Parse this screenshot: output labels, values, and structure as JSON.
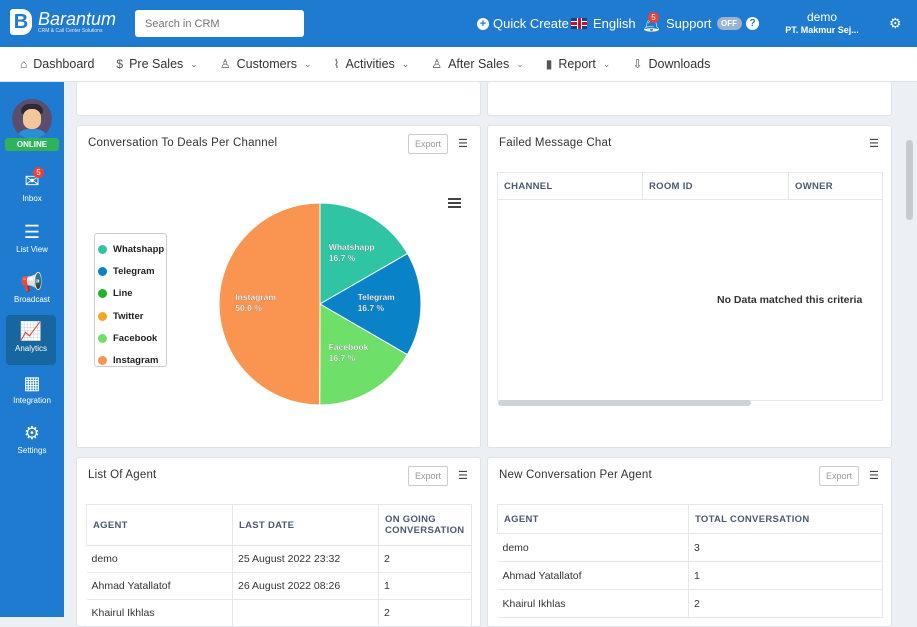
{
  "brand": {
    "name": "Barantum",
    "tagline": "CRM & Call Center Solutions"
  },
  "search": {
    "placeholder": "Search in CRM"
  },
  "topbar": {
    "quick_create": "Quick Create",
    "language": "English",
    "notification_count": "5",
    "support_label": "Support",
    "support_toggle": "OFF",
    "help": "?",
    "user_name": "demo",
    "user_company": "PT. Makmur Sej..."
  },
  "nav": {
    "items": [
      {
        "label": "Dashboard",
        "icon": "home-icon",
        "glyph": "⌂"
      },
      {
        "label": "Pre Sales",
        "icon": "dollar-icon",
        "glyph": "$"
      },
      {
        "label": "Customers",
        "icon": "users-icon",
        "glyph": "♙"
      },
      {
        "label": "Activities",
        "icon": "activity-icon",
        "glyph": "⌇"
      },
      {
        "label": "After Sales",
        "icon": "users-icon",
        "glyph": "♙"
      },
      {
        "label": "Report",
        "icon": "report-icon",
        "glyph": "▮"
      },
      {
        "label": "Downloads",
        "icon": "download-icon",
        "glyph": "⇩"
      }
    ]
  },
  "sidebar": {
    "status": "ONLINE",
    "inbox_badge": "5",
    "items": [
      {
        "label": "Inbox",
        "icon": "inbox-icon",
        "glyph": "✉"
      },
      {
        "label": "List View",
        "icon": "list-icon",
        "glyph": "☰"
      },
      {
        "label": "Broadcast",
        "icon": "megaphone-icon",
        "glyph": "📢"
      },
      {
        "label": "Analytics",
        "icon": "analytics-icon",
        "glyph": "📈"
      },
      {
        "label": "Integration",
        "icon": "grid-icon",
        "glyph": "▦"
      },
      {
        "label": "Settings",
        "icon": "gear-icon",
        "glyph": "⚙"
      }
    ],
    "active": "Analytics"
  },
  "export_label": "Export",
  "conv_chart": {
    "title": "Conversation To Deals Per Channel"
  },
  "chart_data": {
    "type": "pie",
    "title": "",
    "labels": [
      "Whatshapp",
      "Telegram",
      "Line",
      "Twitter",
      "Facebook",
      "Instagram"
    ],
    "values": [
      16.7,
      16.7,
      0,
      0,
      16.7,
      50.0
    ],
    "value_labels": [
      "16.7 %",
      "16.7 %",
      "",
      "",
      "16.7 %",
      "50.0 %"
    ],
    "colors": [
      "#2ec4a4",
      "#0a82c8",
      "#1fb32a",
      "#f5a623",
      "#6ee06a",
      "#f99451"
    ],
    "legend": "left"
  },
  "failed_chat": {
    "title": "Failed Message Chat",
    "columns": [
      "CHANNEL",
      "ROOM ID",
      "OWNER"
    ],
    "empty_text": "No Data matched this criteria"
  },
  "agents": {
    "title": "List Of Agent",
    "columns": [
      "AGENT",
      "LAST DATE",
      "ON GOING CONVERSATION"
    ],
    "rows": [
      [
        "demo",
        "25 August 2022 23:32",
        "2"
      ],
      [
        "Ahmad Yatallatof",
        "26 August 2022 08:26",
        "1"
      ],
      [
        "Khairul Ikhlas",
        "",
        "2"
      ]
    ]
  },
  "new_conv": {
    "title": "New Conversation Per Agent",
    "columns": [
      "AGENT",
      "TOTAL CONVERSATION"
    ],
    "rows": [
      [
        "demo",
        "3"
      ],
      [
        "Ahmad Yatallatof",
        "1"
      ],
      [
        "Khairul Ikhlas",
        "2"
      ]
    ]
  }
}
